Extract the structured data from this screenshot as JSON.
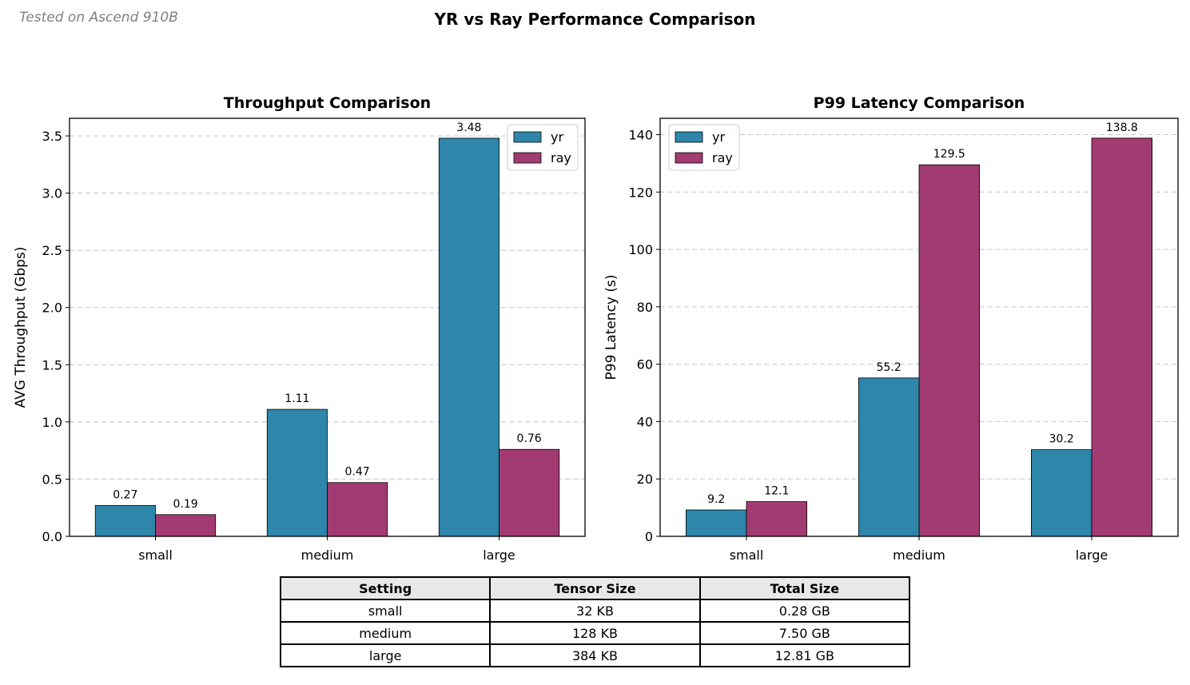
{
  "note": "Tested on Ascend 910B",
  "suptitle": "YR vs Ray Performance Comparison",
  "colors": {
    "yr": "#2e86ab",
    "ray": "#a23b72",
    "grid": "#cccccc"
  },
  "chart_data": [
    {
      "type": "bar",
      "title": "Throughput Comparison",
      "xlabel": "",
      "ylabel": "AVG Throughput (Gbps)",
      "categories": [
        "small",
        "medium",
        "large"
      ],
      "ylim": [
        0,
        3.654
      ],
      "yticks": [
        "0.0",
        "0.5",
        "1.0",
        "1.5",
        "2.0",
        "2.5",
        "3.0",
        "3.5"
      ],
      "grid": "y-dashed",
      "legend": "top-right",
      "series": [
        {
          "name": "yr",
          "values": [
            0.27,
            1.11,
            3.48
          ],
          "labels": [
            "0.27",
            "1.11",
            "3.48"
          ]
        },
        {
          "name": "ray",
          "values": [
            0.19,
            0.47,
            0.76
          ],
          "labels": [
            "0.19",
            "0.47",
            "0.76"
          ]
        }
      ]
    },
    {
      "type": "bar",
      "title": "P99 Latency Comparison",
      "xlabel": "",
      "ylabel": "P99 Latency (s)",
      "categories": [
        "small",
        "medium",
        "large"
      ],
      "ylim": [
        0,
        145.7
      ],
      "yticks": [
        "0",
        "20",
        "40",
        "60",
        "80",
        "100",
        "120",
        "140"
      ],
      "grid": "y-dashed",
      "legend": "top-left",
      "series": [
        {
          "name": "yr",
          "values": [
            9.2,
            55.2,
            30.2
          ],
          "labels": [
            "9.2",
            "55.2",
            "30.2"
          ]
        },
        {
          "name": "ray",
          "values": [
            12.1,
            129.5,
            138.8
          ],
          "labels": [
            "12.1",
            "129.5",
            "138.8"
          ]
        }
      ]
    }
  ],
  "table": {
    "headers": [
      "Setting",
      "Tensor Size",
      "Total Size"
    ],
    "rows": [
      [
        "small",
        "32 KB",
        "0.28 GB"
      ],
      [
        "medium",
        "128 KB",
        "7.50 GB"
      ],
      [
        "large",
        "384 KB",
        "12.81 GB"
      ]
    ]
  }
}
